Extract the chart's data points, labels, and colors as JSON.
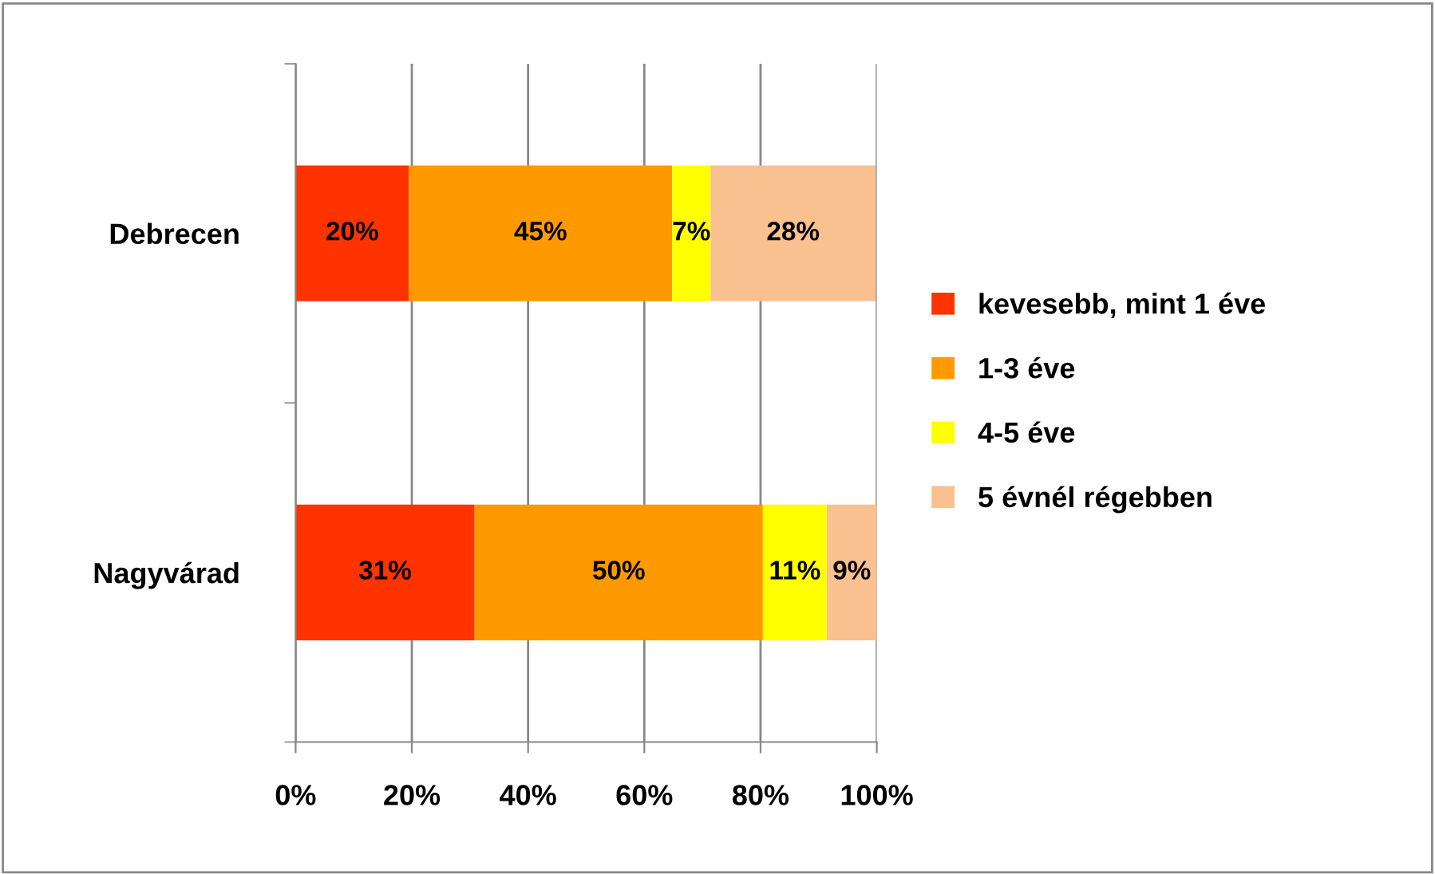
{
  "chart_data": {
    "type": "bar",
    "orientation": "horizontal",
    "stacked": true,
    "categories": [
      "Debrecen",
      "Nagyvárad"
    ],
    "series": [
      {
        "name": "kevesebb, mint 1 éve",
        "color": "#ff3300",
        "values": [
          19.5,
          30.8
        ],
        "value_labels": [
          "20%",
          "31%"
        ]
      },
      {
        "name": "1-3 éve",
        "color": "#ff9900",
        "values": [
          45.3,
          49.6
        ],
        "value_labels": [
          "45%",
          "50%"
        ]
      },
      {
        "name": "4-5 éve",
        "color": "#ffff00",
        "values": [
          6.6,
          11.0
        ],
        "value_labels": [
          "7%",
          "11%"
        ]
      },
      {
        "name": "5 évnél régebben",
        "color": "#f9c090",
        "values": [
          28.4,
          8.6
        ],
        "value_labels": [
          "28%",
          "9%"
        ]
      }
    ],
    "xlim": [
      0,
      100
    ],
    "xticks": [
      {
        "value": 0,
        "label": "0%"
      },
      {
        "value": 20,
        "label": "20%"
      },
      {
        "value": 40,
        "label": "40%"
      },
      {
        "value": 60,
        "label": "60%"
      },
      {
        "value": 80,
        "label": "80%"
      },
      {
        "value": 100,
        "label": "100%"
      }
    ],
    "grid": "x",
    "legend": "right"
  }
}
